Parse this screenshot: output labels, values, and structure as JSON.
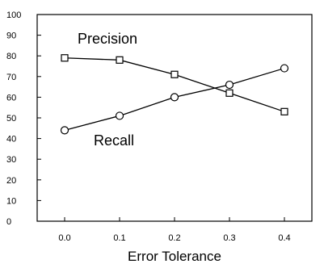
{
  "chart_data": {
    "type": "line",
    "x": [
      0.0,
      0.1,
      0.2,
      0.3,
      0.4
    ],
    "xtick_labels": [
      "0.0",
      "0.1",
      "0.2",
      "0.3",
      "0.4"
    ],
    "xlim": [
      -0.05,
      0.45
    ],
    "ylim": [
      0,
      100
    ],
    "yticks": [
      0,
      10,
      20,
      30,
      40,
      50,
      60,
      70,
      80,
      90,
      100
    ],
    "ytick_labels": [
      "0",
      "10",
      "20",
      "30",
      "40",
      "50",
      "60",
      "70",
      "80",
      "90",
      "100"
    ],
    "xlabel": "Error Tolerance",
    "ylabel": "",
    "title": "",
    "grid": false,
    "series": [
      {
        "name": "Precision",
        "marker": "square",
        "values": [
          79,
          78,
          71,
          62,
          53
        ]
      },
      {
        "name": "Recall",
        "marker": "circle",
        "values": [
          44,
          51,
          60,
          66,
          74
        ]
      }
    ]
  }
}
